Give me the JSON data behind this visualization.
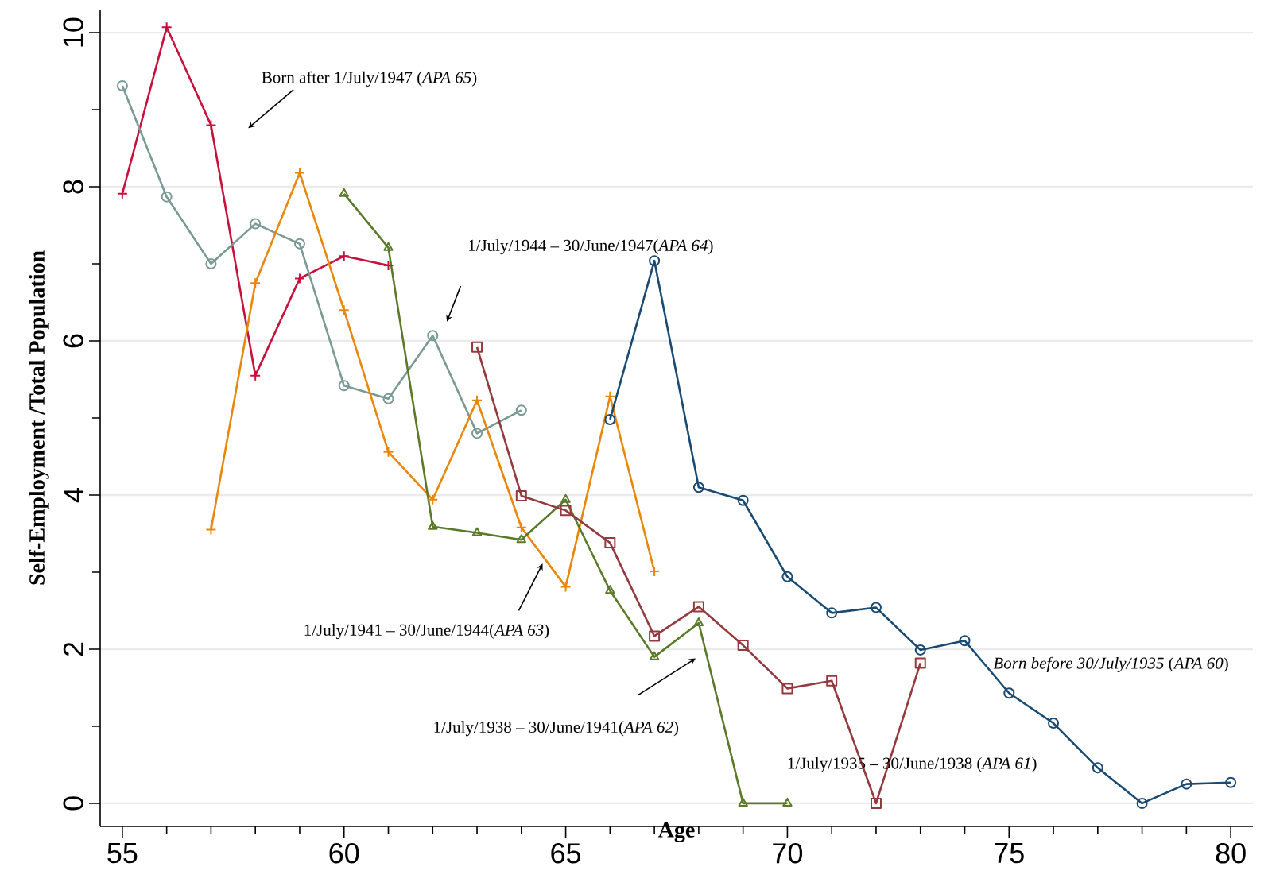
{
  "chart_data": {
    "type": "line",
    "xlabel": "Age",
    "ylabel": "Self-Employment /Total Population",
    "xlim": [
      54.5,
      80.5
    ],
    "ylim": [
      -0.3,
      10.3
    ],
    "xticks": [
      55,
      {
        "value": 56,
        "label": null
      },
      {
        "value": 57,
        "label": null
      },
      {
        "value": 58,
        "label": null
      },
      {
        "value": 59,
        "label": null
      },
      60,
      {
        "value": 61,
        "label": null
      },
      {
        "value": 62,
        "label": null
      },
      {
        "value": 63,
        "label": null
      },
      {
        "value": 64,
        "label": null
      },
      65,
      {
        "value": 66,
        "label": null
      },
      {
        "value": 67,
        "label": null
      },
      {
        "value": 68,
        "label": null
      },
      {
        "value": 69,
        "label": null
      },
      70,
      {
        "value": 71,
        "label": null
      },
      {
        "value": 72,
        "label": null
      },
      {
        "value": 73,
        "label": null
      },
      {
        "value": 74,
        "label": null
      },
      75,
      {
        "value": 76,
        "label": null
      },
      {
        "value": 77,
        "label": null
      },
      {
        "value": 78,
        "label": null
      },
      {
        "value": 79,
        "label": null
      },
      80
    ],
    "yticks": [
      0,
      {
        "value": 1,
        "label": null
      },
      2,
      {
        "value": 3,
        "label": null
      },
      4,
      {
        "value": 5,
        "label": null
      },
      6,
      {
        "value": 7,
        "label": null
      },
      8,
      {
        "value": 9,
        "label": null
      },
      10
    ],
    "grid": "y",
    "series": [
      {
        "color": "#c8103c",
        "marker": "cross",
        "x": [
          55,
          56,
          57,
          58,
          59,
          60,
          61
        ],
        "values": [
          7.91,
          10.07,
          8.8,
          5.55,
          6.81,
          7.1,
          6.98
        ]
      },
      {
        "color": "#7a9a95",
        "marker": "circle",
        "x": [
          55,
          56,
          57,
          58,
          59,
          60,
          61,
          62,
          63,
          64
        ],
        "values": [
          9.31,
          7.87,
          7.0,
          7.52,
          7.26,
          5.42,
          5.25,
          6.07,
          4.8,
          5.1
        ]
      },
      {
        "color": "#e8870a",
        "marker": "cross",
        "x": [
          57,
          58,
          59,
          60,
          61,
          62,
          63,
          64,
          65,
          66,
          67
        ],
        "values": [
          3.55,
          6.75,
          8.18,
          6.4,
          4.56,
          3.94,
          5.23,
          3.58,
          2.81,
          5.28,
          3.01
        ]
      },
      {
        "color": "#5a7a2a",
        "marker": "triangle",
        "x": [
          60,
          61,
          62,
          63,
          64,
          65,
          66,
          67,
          68,
          69,
          70
        ],
        "values": [
          7.91,
          7.21,
          3.59,
          3.51,
          3.42,
          3.94,
          2.76,
          1.9,
          2.34,
          0,
          0
        ]
      },
      {
        "color": "#943a3e",
        "marker": "square",
        "x": [
          63,
          64,
          65,
          66,
          67,
          68,
          69,
          70,
          71,
          72,
          73
        ],
        "values": [
          5.92,
          3.99,
          3.8,
          3.38,
          2.17,
          2.55,
          2.05,
          1.49,
          1.59,
          0,
          1.82
        ]
      },
      {
        "color": "#1a4a72",
        "marker": "circle",
        "x": [
          66,
          67,
          68,
          69,
          70,
          71,
          72,
          73,
          74,
          75,
          76,
          77,
          78,
          79,
          80
        ],
        "values": [
          4.98,
          7.04,
          4.1,
          3.93,
          2.94,
          2.47,
          2.54,
          1.99,
          2.11,
          1.43,
          1.04,
          0.46,
          0,
          0.25,
          0.27
        ]
      }
    ],
    "annotations": [
      "Born after 1/July/1947 (*APA 65*)",
      "1/July/1944 – 30/June/1947(*APA 64*)",
      "1/July/1941 – 30/June/1944(*APA 63*)",
      "1/July/1938 – 30/June/1941(*APA 62*)",
      "1/July/1935 – 30/June/1938 (*APA 61*)",
      "*Born before 30/July/1935* (*APA 60*)"
    ]
  }
}
